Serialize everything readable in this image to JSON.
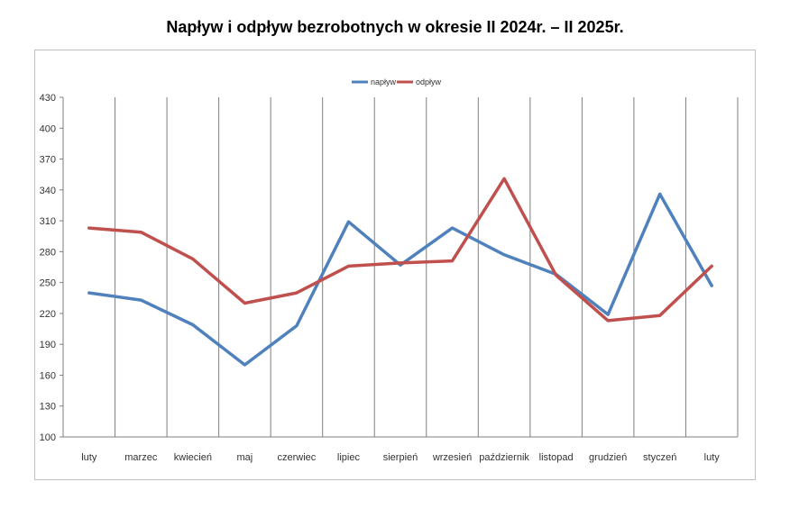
{
  "chart_data": {
    "type": "line",
    "title": "Napływ i odpływ bezrobotnych w okresie II 2024r. – II 2025r.",
    "categories": [
      "luty",
      "marzec",
      "kwiecień",
      "maj",
      "czerwiec",
      "lipiec",
      "sierpień",
      "wrzesień",
      "październik",
      "listopad",
      "grudzień",
      "styczeń",
      "luty"
    ],
    "series": [
      {
        "name": "napływ",
        "color": "#4f81bd",
        "values": [
          240,
          233,
          209,
          170,
          208,
          309,
          267,
          303,
          277,
          258,
          219,
          336,
          247
        ]
      },
      {
        "name": "odpływ",
        "color": "#c0504d",
        "values": [
          303,
          299,
          273,
          230,
          240,
          266,
          269,
          271,
          351,
          257,
          213,
          218,
          266
        ]
      }
    ],
    "ylim": [
      100,
      430
    ],
    "yticks": [
      100,
      130,
      160,
      190,
      220,
      250,
      280,
      310,
      340,
      370,
      400,
      430
    ],
    "grid": "vertical",
    "legend": "top-center"
  }
}
